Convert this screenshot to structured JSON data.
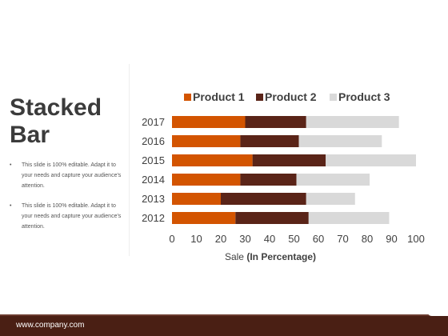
{
  "slide": {
    "title": "Stacked Bar",
    "bullets": [
      "This slide is 100% editable. Adapt it to your needs and capture your audience's attention.",
      "This slide is 100% editable. Adapt it to your needs and capture your audience's attention."
    ],
    "bullet_symbol": "•"
  },
  "footer": {
    "url": "www.company.com"
  },
  "chart_data": {
    "type": "bar",
    "orientation": "horizontal",
    "stacked": true,
    "title": "",
    "xlabel_prefix": "Sale",
    "xlabel_bold": "(In Percentage)",
    "ylabel": "",
    "xlim": [
      0,
      100
    ],
    "xticks": [
      0,
      10,
      20,
      30,
      40,
      50,
      60,
      70,
      80,
      90,
      100
    ],
    "categories": [
      "2017",
      "2016",
      "2015",
      "2014",
      "2013",
      "2012"
    ],
    "series": [
      {
        "name": "Product 1",
        "color": "#d35400",
        "values": [
          30,
          28,
          33,
          28,
          20,
          26
        ]
      },
      {
        "name": "Product 2",
        "color": "#5a2418",
        "values": [
          25,
          24,
          30,
          23,
          35,
          30
        ]
      },
      {
        "name": "Product 3",
        "color": "#d9d9d9",
        "values": [
          38,
          34,
          37,
          30,
          20,
          33
        ]
      }
    ],
    "legend_position": "top",
    "grid": false
  }
}
